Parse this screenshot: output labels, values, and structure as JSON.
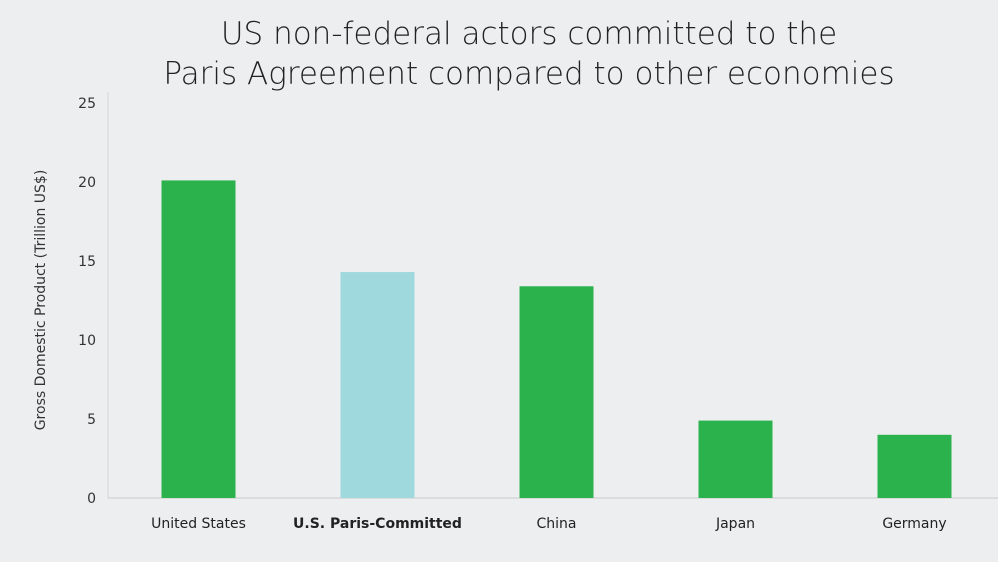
{
  "chart_data": {
    "type": "bar",
    "title": [
      "US non-federal actors committed to the",
      "Paris Agreement compared to other economies"
    ],
    "ylabel": "Gross Domestic Product (Trillion US$)",
    "xlabel": "",
    "ylim": [
      0,
      25
    ],
    "yticks": [
      0,
      5,
      10,
      15,
      20,
      25
    ],
    "categories": [
      "United States",
      "U.S. Paris-Committed",
      "China",
      "Japan",
      "Germany"
    ],
    "highlighted_category": "U.S. Paris-Committed",
    "values": [
      20.1,
      14.3,
      13.4,
      4.9,
      4.0
    ],
    "colors": [
      "#2bb24c",
      "#a0d9dd",
      "#2bb24c",
      "#2bb24c",
      "#2bb24c"
    ],
    "grid": false
  }
}
